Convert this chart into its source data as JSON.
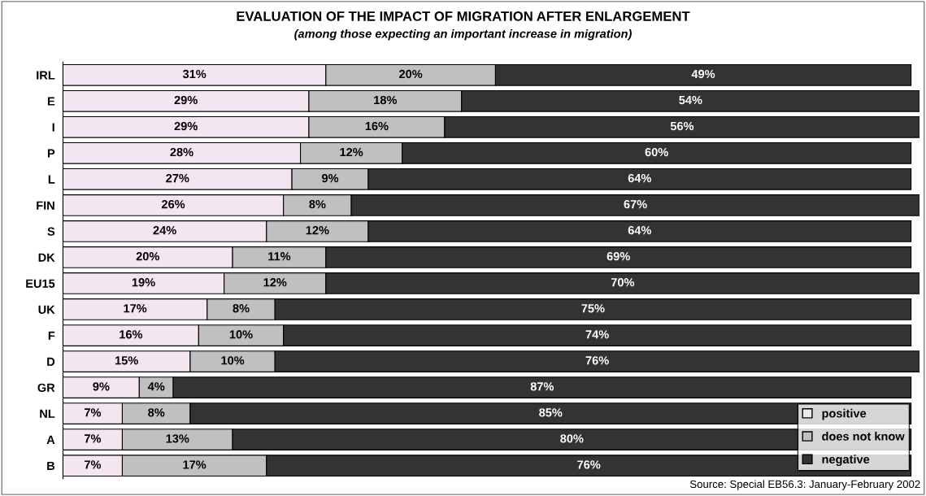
{
  "chart_data": {
    "type": "bar",
    "orientation": "horizontal",
    "stacked": true,
    "title": "EVALUATION OF THE IMPACT OF MIGRATION AFTER ENLARGEMENT",
    "subtitle": "(among those expecting an important increase in migration)",
    "categories": [
      "IRL",
      "E",
      "I",
      "P",
      "L",
      "FIN",
      "S",
      "DK",
      "EU15",
      "UK",
      "F",
      "D",
      "GR",
      "NL",
      "A",
      "B"
    ],
    "series": [
      {
        "name": "positive",
        "color": "#f4e6f0",
        "values": [
          31,
          29,
          29,
          28,
          27,
          26,
          24,
          20,
          19,
          17,
          16,
          15,
          9,
          7,
          7,
          7
        ],
        "value_labels": [
          "31%",
          "29%",
          "29%",
          "28%",
          "27%",
          "26%",
          "24%",
          "20%",
          "19%",
          "17%",
          "16%",
          "15%",
          "9%",
          "7%",
          "7%",
          "7%"
        ]
      },
      {
        "name": "does not know",
        "color": "#c0c0c0",
        "values": [
          20,
          18,
          16,
          12,
          9,
          8,
          12,
          11,
          12,
          8,
          10,
          10,
          4,
          8,
          13,
          17
        ],
        "value_labels": [
          "20%",
          "18%",
          "16%",
          "12%",
          "9%",
          "8%",
          "12%",
          "11%",
          "12%",
          "8%",
          "10%",
          "10%",
          "4%",
          "8%",
          "13%",
          "17%"
        ]
      },
      {
        "name": "negative",
        "color": "#333333",
        "values": [
          49,
          54,
          56,
          60,
          64,
          67,
          64,
          69,
          70,
          75,
          74,
          76,
          87,
          85,
          80,
          76
        ],
        "value_labels": [
          "49%",
          "54%",
          "56%",
          "60%",
          "64%",
          "67%",
          "64%",
          "69%",
          "70%",
          "75%",
          "74%",
          "76%",
          "87%",
          "85%",
          "80%",
          "76%"
        ]
      }
    ],
    "legend": "bottom right",
    "grid": false,
    "tick_labels": "y",
    "annotations": [
      "Source: Special EB56.3: January-February 2002"
    ]
  }
}
